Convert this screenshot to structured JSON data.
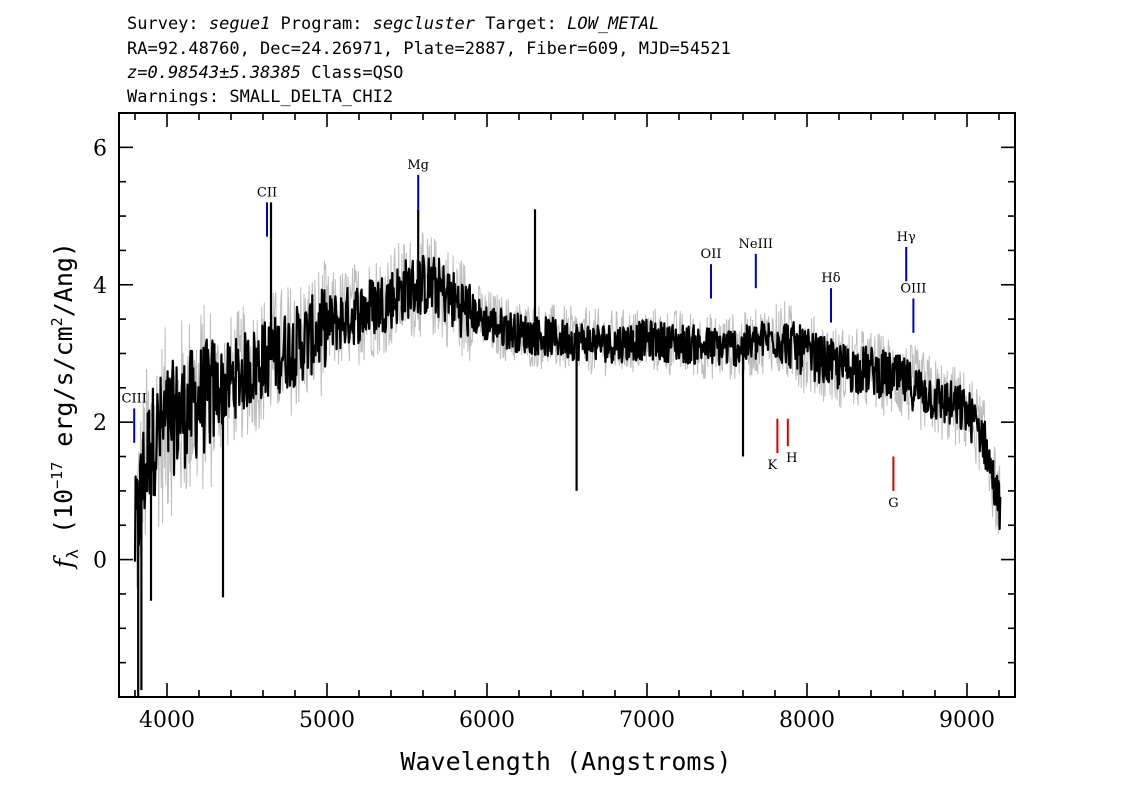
{
  "header": {
    "line1": {
      "survey_label": "Survey: ",
      "survey": "segue1",
      "program_label": " Program: ",
      "program": "segcluster",
      "target_label": " Target: ",
      "target": "LOW_METAL"
    },
    "line2": "RA=92.48760, Dec=24.26971, Plate=2887, Fiber=609, MJD=54521",
    "line3": {
      "z_value": "z=0.98543±5.38385",
      "class_text": " Class=QSO"
    },
    "line4": "Warnings: SMALL_DELTA_CHI2"
  },
  "chart_data": {
    "type": "line",
    "xlabel": "Wavelength (Angstroms)",
    "ylabel": {
      "symbol": "f",
      "subscript": "λ",
      "units_before": " (10",
      "exponent": "−17",
      "units_mid": " erg/s/cm",
      "exponent2": "2",
      "units_after": "/Ang)"
    },
    "xlim": [
      3700,
      9300
    ],
    "ylim": [
      -2.0,
      6.5
    ],
    "x_ticks": [
      4000,
      5000,
      6000,
      7000,
      8000,
      9000
    ],
    "x_tick_labels": [
      "4000",
      "5000",
      "6000",
      "7000",
      "8000",
      "9000"
    ],
    "y_ticks": [
      0,
      2,
      4,
      6
    ],
    "y_tick_labels": [
      "0",
      "2",
      "4",
      "6"
    ],
    "colors": {
      "flux": "#000000",
      "model": "#bdbdbd",
      "emission": "#0000c8",
      "absorption": "#d40000"
    },
    "continuum": [
      [
        3800,
        0.3
      ],
      [
        3850,
        1.2
      ],
      [
        3900,
        1.7
      ],
      [
        4000,
        2.0
      ],
      [
        4200,
        2.3
      ],
      [
        4400,
        2.6
      ],
      [
        4600,
        2.9
      ],
      [
        4800,
        3.1
      ],
      [
        5000,
        3.4
      ],
      [
        5200,
        3.6
      ],
      [
        5400,
        3.8
      ],
      [
        5500,
        3.95
      ],
      [
        5600,
        4.0
      ],
      [
        5700,
        3.95
      ],
      [
        5800,
        3.75
      ],
      [
        6000,
        3.45
      ],
      [
        6200,
        3.3
      ],
      [
        6500,
        3.2
      ],
      [
        6800,
        3.15
      ],
      [
        7000,
        3.2
      ],
      [
        7200,
        3.15
      ],
      [
        7400,
        3.1
      ],
      [
        7600,
        3.1
      ],
      [
        7800,
        3.25
      ],
      [
        8000,
        3.0
      ],
      [
        8200,
        2.8
      ],
      [
        8400,
        2.75
      ],
      [
        8600,
        2.6
      ],
      [
        8800,
        2.35
      ],
      [
        9000,
        2.15
      ],
      [
        9100,
        1.8
      ],
      [
        9200,
        0.8
      ]
    ],
    "spikes": [
      {
        "x": 3820,
        "y": -2.0
      },
      {
        "x": 3840,
        "y": -1.9
      },
      {
        "x": 3900,
        "y": -0.6
      },
      {
        "x": 4350,
        "y": -0.55
      },
      {
        "x": 4650,
        "y": 5.2
      },
      {
        "x": 5570,
        "y": 5.1
      },
      {
        "x": 6300,
        "y": 5.1
      },
      {
        "x": 6560,
        "y": 1.0
      },
      {
        "x": 7600,
        "y": 1.5
      }
    ],
    "emission_lines": [
      {
        "name": "CIII",
        "x": 3795,
        "y_top": 2.2,
        "y_bottom": 1.7
      },
      {
        "name": "CII",
        "x": 4625,
        "y_top": 5.2,
        "y_bottom": 4.7
      },
      {
        "name": "Mg",
        "x": 5570,
        "y_top": 5.6,
        "y_bottom": 5.1
      },
      {
        "name": "OII",
        "x": 7400,
        "y_top": 4.3,
        "y_bottom": 3.8
      },
      {
        "name": "NeIII",
        "x": 7680,
        "y_top": 4.45,
        "y_bottom": 3.95
      },
      {
        "name": "Hδ",
        "x": 8150,
        "y_top": 3.95,
        "y_bottom": 3.45
      },
      {
        "name": "Hγ",
        "x": 8620,
        "y_top": 4.55,
        "y_bottom": 4.05
      },
      {
        "name": "OIII",
        "x": 8665,
        "y_top": 3.8,
        "y_bottom": 3.3
      }
    ],
    "absorption_lines": [
      {
        "name": "K",
        "x": 7815,
        "y_top": 2.05,
        "y_bottom": 1.55
      },
      {
        "name": "H",
        "x": 7880,
        "y_top": 2.05,
        "y_bottom": 1.65
      },
      {
        "name": "G",
        "x": 8540,
        "y_top": 1.5,
        "y_bottom": 1.0
      }
    ]
  }
}
